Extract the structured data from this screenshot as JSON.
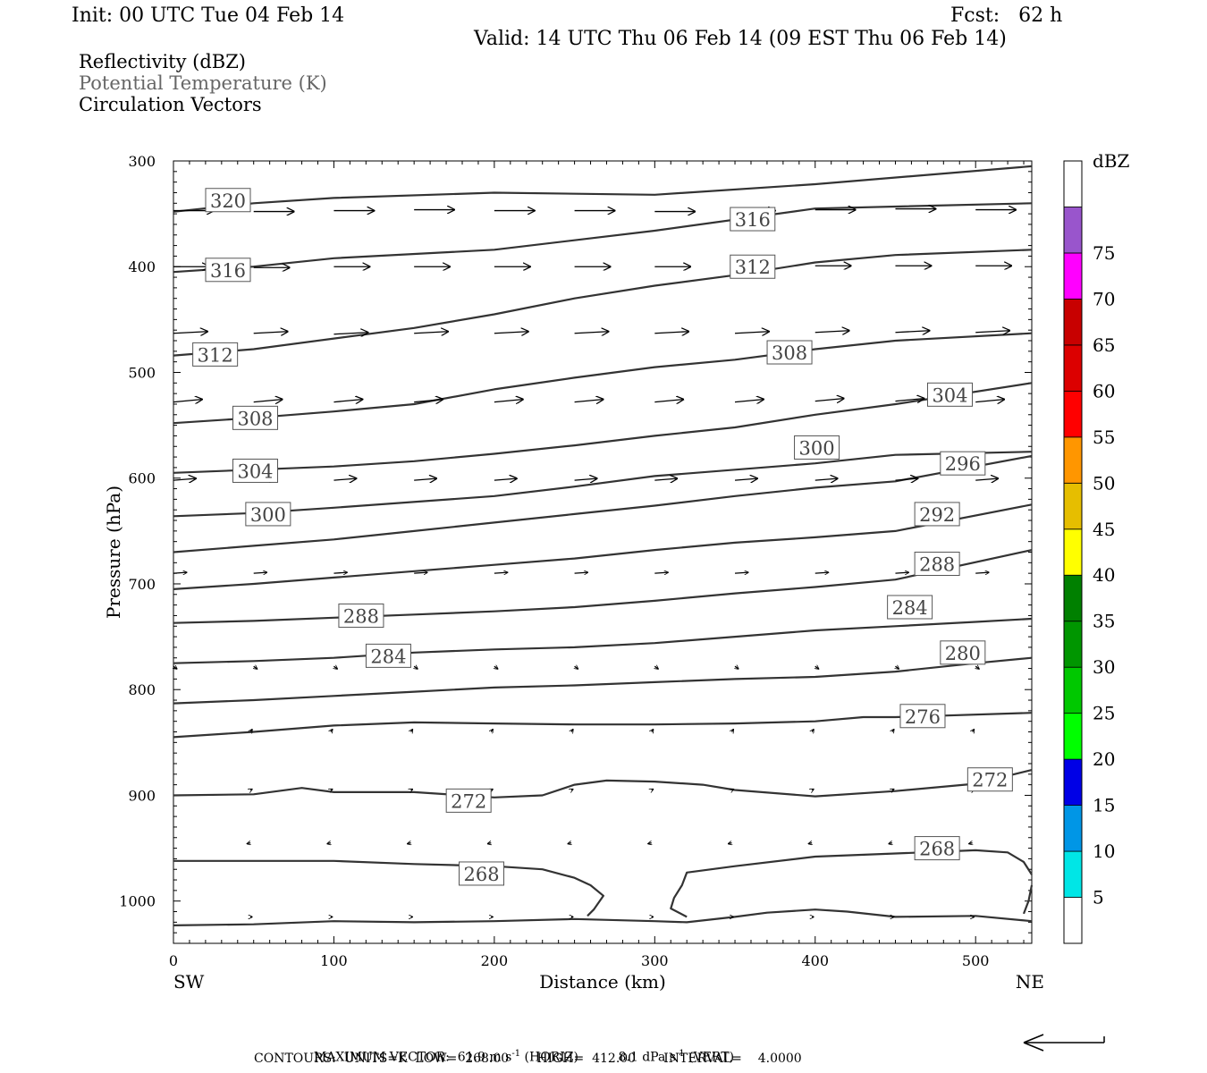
{
  "header": {
    "init": "Init: 00 UTC Tue 04 Feb 14",
    "fcst": "Fcst:   62 h",
    "valid": "Valid: 14 UTC Thu 06 Feb 14 (09 EST Thu 06 Feb 14)"
  },
  "legend": {
    "line1": "Reflectivity (dBZ)",
    "line2": "Potential Temperature (K)",
    "line3": "Circulation Vectors"
  },
  "footer": {
    "max_vector_label": "MAXIMUM VECTOR:",
    "horiz_value": "61.9 m s",
    "horiz_unit": "(HORIZ)",
    "vert_value": "8.1 dPa s",
    "vert_unit": "(VERT)",
    "contours_line": "CONTOURS:  UNITS=K  LOW=  268.00       HIGH=  412.00       INTERVAL=    4.0000"
  },
  "colors": {
    "contour": "#333333",
    "legend_gray": "#666666",
    "scale": [
      "#ffffff",
      "#00e6e6",
      "#0096e6",
      "#0000e6",
      "#00ff00",
      "#00c800",
      "#009600",
      "#008000",
      "#ffff00",
      "#e6be00",
      "#ff9600",
      "#ff0000",
      "#dc0000",
      "#c80000",
      "#ff00ff",
      "#9955cc",
      "#ffffff"
    ]
  },
  "chart_data": {
    "type": "cross-section",
    "xlabel": "Distance (km)",
    "ylabel": "Pressure (hPa)",
    "x_left_end": "SW",
    "x_right_end": "NE",
    "xlim": [
      0,
      535
    ],
    "ylim": [
      1040,
      300
    ],
    "x_ticks": [
      0,
      100,
      200,
      300,
      400,
      500
    ],
    "y_ticks": [
      300,
      400,
      500,
      600,
      700,
      800,
      900,
      1000
    ],
    "colorbar": {
      "unit": "dBZ",
      "levels": [
        5,
        10,
        15,
        20,
        25,
        30,
        35,
        40,
        45,
        50,
        55,
        60,
        65,
        70,
        75
      ]
    },
    "theta_contours": [
      {
        "value": 320,
        "points": [
          [
            0,
            348
          ],
          [
            50,
            340
          ],
          [
            100,
            335
          ],
          [
            200,
            330
          ],
          [
            300,
            332
          ],
          [
            400,
            322
          ],
          [
            535,
            305
          ]
        ]
      },
      {
        "value": 316,
        "points": [
          [
            0,
            405
          ],
          [
            50,
            400
          ],
          [
            100,
            392
          ],
          [
            200,
            384
          ],
          [
            300,
            366
          ],
          [
            400,
            345
          ],
          [
            535,
            340
          ]
        ]
      },
      {
        "value": 312,
        "points": [
          [
            0,
            484
          ],
          [
            50,
            478
          ],
          [
            100,
            468
          ],
          [
            150,
            458
          ],
          [
            200,
            445
          ],
          [
            250,
            430
          ],
          [
            300,
            418
          ],
          [
            350,
            408
          ],
          [
            400,
            396
          ],
          [
            450,
            389
          ],
          [
            535,
            384
          ]
        ]
      },
      {
        "value": 308,
        "points": [
          [
            0,
            548
          ],
          [
            50,
            543
          ],
          [
            100,
            537
          ],
          [
            150,
            530
          ],
          [
            200,
            516
          ],
          [
            250,
            505
          ],
          [
            300,
            495
          ],
          [
            350,
            488
          ],
          [
            400,
            478
          ],
          [
            450,
            470
          ],
          [
            535,
            463
          ]
        ]
      },
      {
        "value": 304,
        "points": [
          [
            0,
            595
          ],
          [
            50,
            592
          ],
          [
            100,
            589
          ],
          [
            150,
            584
          ],
          [
            200,
            577
          ],
          [
            250,
            569
          ],
          [
            300,
            560
          ],
          [
            350,
            552
          ],
          [
            400,
            540
          ],
          [
            450,
            530
          ],
          [
            535,
            510
          ]
        ]
      },
      {
        "value": 300,
        "points": [
          [
            0,
            636
          ],
          [
            50,
            633
          ],
          [
            100,
            628
          ],
          [
            200,
            617
          ],
          [
            250,
            608
          ],
          [
            300,
            598
          ],
          [
            400,
            586
          ],
          [
            450,
            578
          ],
          [
            535,
            575
          ]
        ]
      },
      {
        "value": 296,
        "points": [
          [
            0,
            670
          ],
          [
            50,
            664
          ],
          [
            100,
            658
          ],
          [
            150,
            650
          ],
          [
            200,
            642
          ],
          [
            250,
            634
          ],
          [
            300,
            626
          ],
          [
            350,
            617
          ],
          [
            400,
            609
          ],
          [
            450,
            603
          ],
          [
            535,
            579
          ]
        ]
      },
      {
        "value": 292,
        "points": [
          [
            0,
            705
          ],
          [
            50,
            700
          ],
          [
            100,
            694
          ],
          [
            150,
            688
          ],
          [
            200,
            682
          ],
          [
            250,
            676
          ],
          [
            300,
            668
          ],
          [
            350,
            661
          ],
          [
            400,
            656
          ],
          [
            450,
            650
          ],
          [
            535,
            625
          ]
        ]
      },
      {
        "value": 288,
        "points": [
          [
            0,
            737
          ],
          [
            50,
            735
          ],
          [
            100,
            732
          ],
          [
            150,
            729
          ],
          [
            200,
            726
          ],
          [
            250,
            722
          ],
          [
            300,
            716
          ],
          [
            350,
            709
          ],
          [
            400,
            703
          ],
          [
            450,
            696
          ],
          [
            535,
            668
          ]
        ]
      },
      {
        "value": 284,
        "points": [
          [
            0,
            775
          ],
          [
            50,
            773
          ],
          [
            100,
            770
          ],
          [
            150,
            765
          ],
          [
            200,
            762
          ],
          [
            250,
            760
          ],
          [
            300,
            756
          ],
          [
            350,
            750
          ],
          [
            400,
            744
          ],
          [
            450,
            740
          ],
          [
            500,
            736
          ],
          [
            535,
            733
          ]
        ]
      },
      {
        "value": 280,
        "points": [
          [
            0,
            813
          ],
          [
            50,
            810
          ],
          [
            100,
            806
          ],
          [
            150,
            802
          ],
          [
            200,
            798
          ],
          [
            250,
            796
          ],
          [
            300,
            793
          ],
          [
            350,
            790
          ],
          [
            400,
            788
          ],
          [
            450,
            783
          ],
          [
            500,
            775
          ],
          [
            535,
            770
          ]
        ]
      },
      {
        "value": 276,
        "points": [
          [
            0,
            845
          ],
          [
            50,
            840
          ],
          [
            100,
            834
          ],
          [
            150,
            831
          ],
          [
            200,
            832
          ],
          [
            250,
            833
          ],
          [
            300,
            833
          ],
          [
            350,
            832
          ],
          [
            400,
            830
          ],
          [
            430,
            826
          ],
          [
            450,
            826
          ],
          [
            535,
            822
          ]
        ]
      },
      {
        "value": 272,
        "points": [
          [
            0,
            900
          ],
          [
            50,
            899
          ],
          [
            80,
            893
          ],
          [
            100,
            897
          ],
          [
            150,
            897
          ],
          [
            200,
            902
          ],
          [
            230,
            900
          ],
          [
            250,
            890
          ],
          [
            270,
            886
          ],
          [
            300,
            887
          ],
          [
            330,
            890
          ],
          [
            350,
            895
          ],
          [
            400,
            901
          ],
          [
            450,
            896
          ],
          [
            500,
            889
          ],
          [
            535,
            876
          ]
        ]
      },
      {
        "value": 268,
        "points": [
          [
            0,
            962
          ],
          [
            50,
            962
          ],
          [
            100,
            962
          ],
          [
            150,
            965
          ],
          [
            200,
            967
          ],
          [
            230,
            970
          ],
          [
            250,
            978
          ],
          [
            260,
            985
          ],
          [
            268,
            995
          ],
          [
            262,
            1008
          ],
          [
            258,
            1014
          ]
        ]
      },
      {
        "value": 268,
        "points": [
          [
            320,
            1015
          ],
          [
            310,
            1007
          ],
          [
            312,
            997
          ],
          [
            317,
            985
          ],
          [
            320,
            973
          ],
          [
            350,
            967
          ],
          [
            400,
            958
          ],
          [
            450,
            955
          ],
          [
            500,
            952
          ],
          [
            520,
            954
          ],
          [
            530,
            963
          ],
          [
            535,
            975
          ]
        ]
      },
      {
        "value": 268,
        "points": [
          [
            535,
            985
          ],
          [
            533,
            1000
          ],
          [
            530,
            1012
          ]
        ]
      },
      {
        "value": 268,
        "points": [
          [
            0,
            1023
          ],
          [
            50,
            1022
          ],
          [
            100,
            1019
          ],
          [
            150,
            1020
          ],
          [
            200,
            1019
          ],
          [
            250,
            1017
          ],
          [
            300,
            1019
          ],
          [
            320,
            1020
          ],
          [
            350,
            1015
          ],
          [
            370,
            1011
          ],
          [
            400,
            1008
          ],
          [
            420,
            1010
          ],
          [
            450,
            1015
          ],
          [
            500,
            1014
          ],
          [
            535,
            1019
          ]
        ]
      }
    ],
    "contour_labels": [
      {
        "value": 320,
        "x": 34,
        "p": 337
      },
      {
        "value": 316,
        "x": 34,
        "p": 403
      },
      {
        "value": 316,
        "x": 361,
        "p": 355
      },
      {
        "value": 312,
        "x": 361,
        "p": 400
      },
      {
        "value": 312,
        "x": 26,
        "p": 483
      },
      {
        "value": 308,
        "x": 384,
        "p": 481
      },
      {
        "value": 308,
        "x": 51,
        "p": 543
      },
      {
        "value": 304,
        "x": 484,
        "p": 521
      },
      {
        "value": 304,
        "x": 51,
        "p": 593
      },
      {
        "value": 300,
        "x": 401,
        "p": 571
      },
      {
        "value": 300,
        "x": 59,
        "p": 634
      },
      {
        "value": 296,
        "x": 492,
        "p": 586
      },
      {
        "value": 292,
        "x": 476,
        "p": 634
      },
      {
        "value": 288,
        "x": 476,
        "p": 681
      },
      {
        "value": 288,
        "x": 117,
        "p": 730
      },
      {
        "value": 284,
        "x": 459,
        "p": 722
      },
      {
        "value": 284,
        "x": 134,
        "p": 768
      },
      {
        "value": 280,
        "x": 492,
        "p": 765
      },
      {
        "value": 276,
        "x": 467,
        "p": 825
      },
      {
        "value": 272,
        "x": 184,
        "p": 905
      },
      {
        "value": 272,
        "x": 509,
        "p": 885
      },
      {
        "value": 268,
        "x": 476,
        "p": 950
      },
      {
        "value": 268,
        "x": 192,
        "p": 974
      }
    ],
    "vector_rows": [
      {
        "p": 347,
        "dx": 45,
        "dy": 0,
        "x0": 0,
        "drift": [
          0,
          1,
          0,
          -1,
          0,
          0,
          1,
          0,
          -1,
          -2,
          -1,
          0
        ]
      },
      {
        "p": 400,
        "dx": 40,
        "dy": 0,
        "x0": 0,
        "drift": [
          0,
          1,
          0,
          0,
          0,
          0,
          0,
          0,
          -1,
          -1,
          -1,
          0
        ]
      },
      {
        "p": 463,
        "dx": 38,
        "dy": -2,
        "x0": 0,
        "drift": [
          0,
          0,
          1,
          0,
          0,
          0,
          0,
          0,
          -1,
          -1,
          -1,
          0
        ]
      },
      {
        "p": 528,
        "dx": 32,
        "dy": -3,
        "x0": 0,
        "drift": [
          0,
          0,
          0,
          0,
          0,
          0,
          0,
          0,
          -1,
          -1,
          0,
          0
        ]
      },
      {
        "p": 602,
        "dx": 25,
        "dy": -2,
        "x0": 0,
        "drift": [
          0,
          0,
          0,
          0,
          0,
          0,
          0,
          0,
          0,
          0,
          0,
          1
        ]
      },
      {
        "p": 690,
        "dx": 15,
        "dy": -1,
        "x0": 0,
        "drift": [
          0,
          0,
          0,
          0,
          0,
          0,
          0,
          0,
          0,
          0,
          0,
          0
        ]
      },
      {
        "p": 778,
        "dx": 4,
        "dy": 3,
        "x0": 0,
        "drift": [
          0,
          0,
          0,
          0,
          0,
          0,
          0,
          0,
          0,
          0,
          0,
          0
        ]
      },
      {
        "p": 840,
        "dx": 2,
        "dy": -3,
        "x0": 48,
        "drift": [
          0,
          0,
          0,
          0,
          0,
          0,
          0,
          0,
          0,
          0,
          0
        ]
      },
      {
        "p": 895,
        "dx": 2,
        "dy": -1,
        "x0": 48,
        "drift": [
          0,
          0,
          0,
          0,
          0,
          0,
          0,
          0,
          0,
          0,
          0
        ]
      },
      {
        "p": 945,
        "dx": -4,
        "dy": 1,
        "x0": 48,
        "drift": [
          0,
          0,
          0,
          0,
          0,
          0,
          0,
          0,
          0,
          0,
          0
        ]
      },
      {
        "p": 1015,
        "dx": 2,
        "dy": 0,
        "x0": 48,
        "drift": [
          0,
          0,
          0,
          0,
          0,
          0,
          0,
          0,
          0,
          0,
          0
        ]
      }
    ]
  }
}
